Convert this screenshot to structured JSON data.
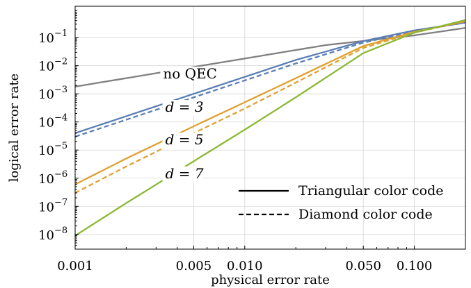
{
  "chart_data": {
    "type": "line",
    "xlabel": "physical error rate",
    "ylabel": "logical error rate",
    "xscale": "log",
    "yscale": "log",
    "xlim": [
      0.001,
      0.2
    ],
    "ylim": [
      3e-09,
      1.3
    ],
    "grid": true,
    "legend_position": "bottom-right",
    "xticks": [
      {
        "value": 0.001,
        "label": "0.001"
      },
      {
        "value": 0.005,
        "label": "0.005"
      },
      {
        "value": 0.01,
        "label": "0.010"
      },
      {
        "value": 0.05,
        "label": "0.050"
      },
      {
        "value": 0.1,
        "label": "0.100"
      }
    ],
    "yticks": [
      {
        "value": 1e-08,
        "mantissa": "10",
        "exp": "−8"
      },
      {
        "value": 1e-07,
        "mantissa": "10",
        "exp": "−7"
      },
      {
        "value": 1e-06,
        "mantissa": "10",
        "exp": "−6"
      },
      {
        "value": 1e-05,
        "mantissa": "10",
        "exp": "−5"
      },
      {
        "value": 0.0001,
        "mantissa": "10",
        "exp": "−4"
      },
      {
        "value": 0.001,
        "mantissa": "10",
        "exp": "−3"
      },
      {
        "value": 0.01,
        "mantissa": "10",
        "exp": "−2"
      },
      {
        "value": 0.1,
        "mantissa": "10",
        "exp": "−1"
      }
    ],
    "series": [
      {
        "key": "noqec",
        "color": "#808080",
        "dash": "solid",
        "x": [
          0.001,
          0.003,
          0.01,
          0.03,
          0.1,
          0.2
        ],
        "y": [
          0.0018,
          0.0054,
          0.018,
          0.054,
          0.12,
          0.22
        ]
      },
      {
        "key": "d3-tri",
        "color": "#5b7fb5",
        "dash": "solid",
        "x": [
          0.001,
          0.002,
          0.005,
          0.01,
          0.02,
          0.05,
          0.1,
          0.2
        ],
        "y": [
          4e-05,
          0.00016,
          0.001,
          0.004,
          0.016,
          0.075,
          0.18,
          0.34
        ]
      },
      {
        "key": "d3-dia",
        "color": "#5b7fb5",
        "dash": "dashed",
        "x": [
          0.001,
          0.002,
          0.005,
          0.01,
          0.02,
          0.05,
          0.1,
          0.2
        ],
        "y": [
          3e-05,
          0.00012,
          0.00075,
          0.003,
          0.012,
          0.066,
          0.17,
          0.34
        ]
      },
      {
        "key": "d5-tri",
        "color": "#e0a030",
        "dash": "solid",
        "x": [
          0.001,
          0.002,
          0.005,
          0.01,
          0.02,
          0.05,
          0.1,
          0.2
        ],
        "y": [
          6e-07,
          5e-06,
          7e-05,
          0.0005,
          0.0036,
          0.05,
          0.16,
          0.38
        ]
      },
      {
        "key": "d5-dia",
        "color": "#e0a030",
        "dash": "dashed",
        "x": [
          0.001,
          0.002,
          0.005,
          0.01,
          0.02,
          0.05,
          0.1,
          0.2
        ],
        "y": [
          3e-07,
          2.6e-06,
          4e-05,
          0.0003,
          0.0025,
          0.043,
          0.15,
          0.38
        ]
      },
      {
        "key": "d7-tri",
        "color": "#8ab832",
        "dash": "solid",
        "x": [
          0.001,
          0.002,
          0.005,
          0.01,
          0.02,
          0.05,
          0.1,
          0.2
        ],
        "y": [
          9e-09,
          1.3e-07,
          4e-06,
          5.3e-05,
          0.00075,
          0.028,
          0.15,
          0.42
        ]
      }
    ],
    "curve_labels": [
      {
        "text": "no QEC",
        "x": 0.0033,
        "y": 0.0035
      },
      {
        "text": "d = 3",
        "x": 0.0034,
        "y": 0.00023
      },
      {
        "text": "d = 5",
        "x": 0.0034,
        "y": 1.6e-05
      },
      {
        "text": "d = 7",
        "x": 0.0034,
        "y": 1e-06
      }
    ],
    "legend": [
      {
        "text": "Triangular color code",
        "dash": "solid"
      },
      {
        "text": "Diamond color code",
        "dash": "dashed"
      }
    ]
  }
}
